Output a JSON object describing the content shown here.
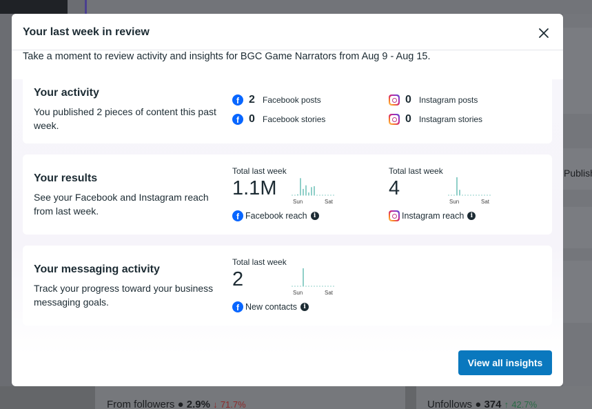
{
  "background": {
    "from_followers_label": "From followers",
    "from_followers_value": "2.9%",
    "from_followers_change": "71.7%",
    "unfollows_label": "Unfollows",
    "unfollows_value": "374",
    "unfollows_change": "42.7%",
    "publish_label": "Publish"
  },
  "modal": {
    "title": "Your last week in review",
    "subtitle": "Take a moment to review activity and insights for BGC Game Narrators from Aug 9 - Aug 15.",
    "cta_label": "View all insights"
  },
  "activity": {
    "title": "Your activity",
    "description": "You published 2 pieces of content this past week.",
    "stats": [
      {
        "icon": "facebook-icon",
        "value": "2",
        "label": "Facebook posts"
      },
      {
        "icon": "facebook-icon",
        "value": "0",
        "label": "Facebook stories"
      },
      {
        "icon": "instagram-icon",
        "value": "0",
        "label": "Instagram posts"
      },
      {
        "icon": "instagram-icon",
        "value": "0",
        "label": "Instagram stories"
      }
    ]
  },
  "results": {
    "title": "Your results",
    "description": "See your Facebook and Instagram reach from last week.",
    "facebook": {
      "total_label": "Total last week",
      "value": "1.1M",
      "legend": "Facebook reach",
      "axis_start": "Sun",
      "axis_end": "Sat",
      "bars": [
        0.05,
        0.95,
        0.35,
        0.55,
        0.15,
        0.45,
        0.5
      ]
    },
    "instagram": {
      "total_label": "Total last week",
      "value": "4",
      "legend": "Instagram reach",
      "axis_start": "Sun",
      "axis_end": "Sat",
      "bars": [
        0,
        1.0,
        0.3,
        0,
        0,
        0,
        0
      ]
    }
  },
  "messaging": {
    "title": "Your messaging activity",
    "description": "Track your progress toward your business messaging goals.",
    "metric": {
      "total_label": "Total last week",
      "value": "2",
      "legend": "New contacts",
      "axis_start": "Sun",
      "axis_end": "Sat",
      "bars": [
        0,
        0,
        1.0,
        0,
        0,
        0,
        0
      ]
    }
  },
  "colors": {
    "accent": "#0a78be",
    "facebook": "#0866ff",
    "spark": "#8fcfc8"
  }
}
